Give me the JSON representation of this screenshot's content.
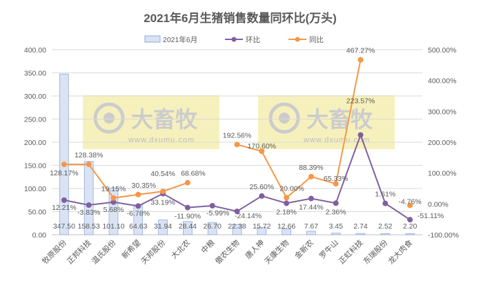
{
  "chart_data": {
    "type": "bar+line",
    "title": "2021年6月生猪销售数量同环比(万头)",
    "categories": [
      "牧原股份",
      "正邦科技",
      "温氏股份",
      "新希望",
      "天邦股份",
      "大北农",
      "中粮",
      "傲农生物",
      "唐人神",
      "天康生物",
      "金新农",
      "罗牛山",
      "正虹科技",
      "东瑞股份",
      "龙大肉食"
    ],
    "series": [
      {
        "name": "2021年6月",
        "type": "bar",
        "axis": "left",
        "color": "#dae3f3",
        "values": [
          347.5,
          158.53,
          101.1,
          64.63,
          31.94,
          28.44,
          26.7,
          22.38,
          15.72,
          12.66,
          7.67,
          3.45,
          2.74,
          2.52,
          2.2
        ],
        "labels": [
          "347.50",
          "158.53",
          "101.10",
          "64.63",
          "31.94",
          "28.44",
          "26.70",
          "22.38",
          "15.72",
          "12.66",
          "7.67",
          "3.45",
          "2.74",
          "2.52",
          "2.20"
        ]
      },
      {
        "name": "环比",
        "type": "line",
        "axis": "right",
        "color": "#7f5fa0",
        "values": [
          12.21,
          -3.83,
          5.68,
          -6.78,
          33.19,
          -11.9,
          -5.99,
          -24.14,
          25.6,
          2.18,
          17.44,
          2.36,
          223.57,
          1.61,
          -51.11
        ],
        "labels": [
          "12.21%",
          "-3.83%",
          "5.68%",
          "-6.78%",
          "33.19%",
          "-11.90%",
          "-5.99%",
          "-24.14%",
          "25.60%",
          "2.18%",
          "17.44%",
          "2.36%",
          "223.57%",
          "1.61%",
          "-51.11%"
        ]
      },
      {
        "name": "同比",
        "type": "line",
        "axis": "right",
        "color": "#f79646",
        "values": [
          128.17,
          128.38,
          19.15,
          30.35,
          40.54,
          68.68,
          null,
          192.56,
          170.6,
          20.0,
          88.39,
          65.33,
          467.27,
          null,
          -4.76
        ],
        "labels": [
          "128.17%",
          "128.38%",
          "19.15%",
          "30.35%",
          "40.54%",
          "68.68%",
          "",
          "192.56%",
          "170.60%",
          "20.00%",
          "88.39%",
          "65.33%",
          "467.27%",
          "",
          "-4.76%"
        ]
      }
    ],
    "left_axis": {
      "ylim": [
        0,
        400
      ],
      "ticks": [
        "0.00",
        "50.00",
        "100.00",
        "150.00",
        "200.00",
        "250.00",
        "300.00",
        "350.00",
        "400.00"
      ]
    },
    "right_axis": {
      "ylim": [
        -100,
        500
      ],
      "ticks": [
        "-100.00%",
        "0.00%",
        "100.00%",
        "200.00%",
        "300.00%",
        "400.00%",
        "500.00%"
      ]
    },
    "grid": true,
    "legend_placement": "top"
  },
  "watermark": {
    "brand": "大畜牧",
    "url": "www.dxumu.com",
    "color": "#f5eeb0"
  }
}
